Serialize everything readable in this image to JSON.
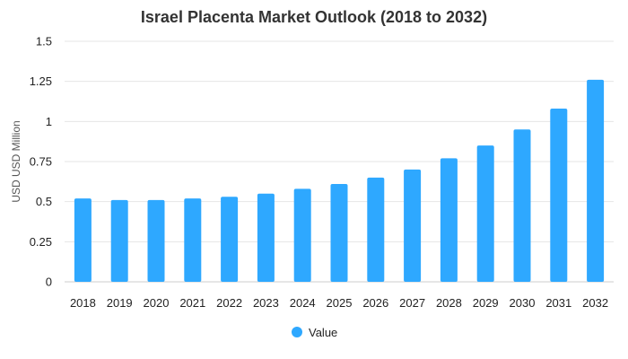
{
  "chart_data": {
    "type": "bar",
    "title": "Israel Placenta Market Outlook (2018 to 2032)",
    "xlabel": "",
    "ylabel": "USD USD Million",
    "categories": [
      "2018",
      "2019",
      "2020",
      "2021",
      "2022",
      "2023",
      "2024",
      "2025",
      "2026",
      "2027",
      "2028",
      "2029",
      "2030",
      "2031",
      "2032"
    ],
    "series": [
      {
        "name": "Value",
        "color": "#2ea8ff",
        "values": [
          0.52,
          0.51,
          0.51,
          0.52,
          0.53,
          0.55,
          0.58,
          0.61,
          0.65,
          0.7,
          0.77,
          0.85,
          0.95,
          1.08,
          1.26
        ]
      }
    ],
    "ylim": [
      0,
      1.5
    ],
    "yticks": [
      "0",
      "0.25",
      "0.5",
      "0.75",
      "1",
      "1.25",
      "1.5"
    ],
    "grid": true,
    "legend_position": "bottom-center"
  }
}
